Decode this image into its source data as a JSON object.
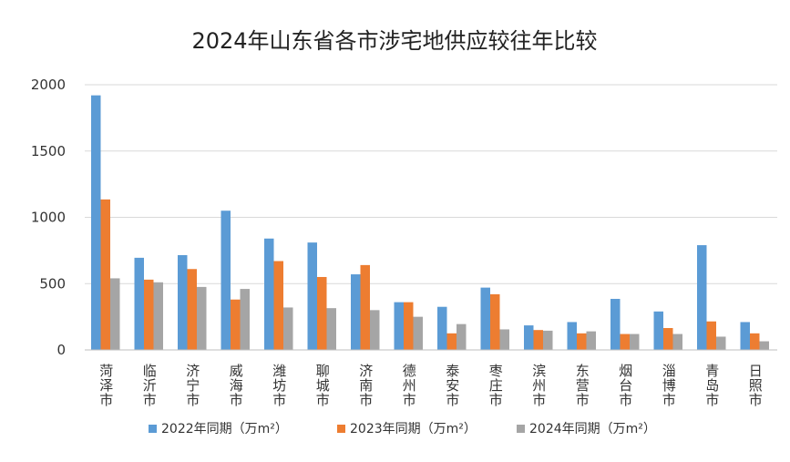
{
  "chart_data": {
    "type": "bar",
    "title": "2024年山东省各市涉宅地供应较往年比较",
    "categories": [
      "菏泽市",
      "临沂市",
      "济宁市",
      "威海市",
      "潍坊市",
      "聊城市",
      "济南市",
      "德州市",
      "泰安市",
      "枣庄市",
      "滨州市",
      "东营市",
      "烟台市",
      "淄博市",
      "青岛市",
      "日照市"
    ],
    "series": [
      {
        "name": "2022年同期（万m²）",
        "color": "#5b9bd5",
        "values": [
          1920,
          695,
          715,
          1050,
          840,
          810,
          570,
          360,
          325,
          470,
          185,
          210,
          385,
          290,
          790,
          210
        ]
      },
      {
        "name": "2023年同期（万m²）",
        "color": "#ed7d31",
        "values": [
          1135,
          530,
          610,
          380,
          670,
          550,
          640,
          360,
          125,
          420,
          150,
          125,
          120,
          165,
          215,
          125
        ]
      },
      {
        "name": "2024年同期（万m²）",
        "color": "#a5a5a5",
        "values": [
          540,
          510,
          475,
          460,
          320,
          315,
          300,
          250,
          195,
          155,
          145,
          140,
          120,
          120,
          100,
          65
        ]
      }
    ],
    "yticks": [
      0,
      500,
      1000,
      1500,
      2000
    ],
    "ylim": [
      0,
      2000
    ],
    "grid": true,
    "legend": "bottom"
  }
}
